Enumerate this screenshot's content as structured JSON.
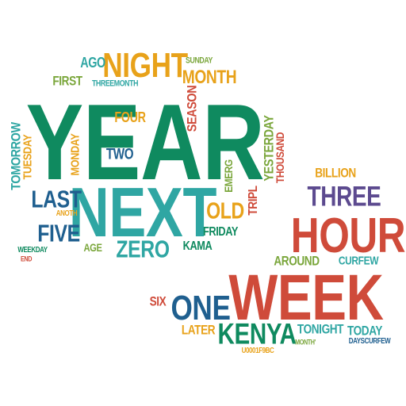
{
  "colors": {
    "green": "#0f8a5f",
    "teal": "#2fa6a3",
    "orange": "#e8a21a",
    "red": "#cf4b3a",
    "blue": "#1f5f8f",
    "purple": "#5c4a8f",
    "olive": "#7aa63b",
    "background": "#ffffff"
  },
  "words": [
    {
      "text": "YEAR",
      "color": "green"
    },
    {
      "text": "NEXT",
      "color": "teal"
    },
    {
      "text": "NIGHT",
      "color": "orange"
    },
    {
      "text": "MONTH",
      "color": "orange"
    },
    {
      "text": "AGO",
      "color": "teal"
    },
    {
      "text": "SUNDAY",
      "color": "olive"
    },
    {
      "text": "FIRST",
      "color": "olive"
    },
    {
      "text": "THREEMONTH",
      "color": "teal"
    },
    {
      "text": "SEASON",
      "color": "red"
    },
    {
      "text": "FOUR",
      "color": "orange"
    },
    {
      "text": "TWO",
      "color": "blue"
    },
    {
      "text": "TOMORROW",
      "color": "teal"
    },
    {
      "text": "TUESDAY",
      "color": "orange"
    },
    {
      "text": "MONDAY",
      "color": "orange"
    },
    {
      "text": "LAST",
      "color": "blue"
    },
    {
      "text": "ANOTH",
      "color": "orange"
    },
    {
      "text": "FIVE",
      "color": "blue"
    },
    {
      "text": "AGE",
      "color": "olive"
    },
    {
      "text": "ZERO",
      "color": "teal"
    },
    {
      "text": "WEEKDAY",
      "color": "green"
    },
    {
      "text": "END",
      "color": "red"
    },
    {
      "text": "OLD",
      "color": "orange"
    },
    {
      "text": "FRIDAY",
      "color": "green"
    },
    {
      "text": "KAMA",
      "color": "green"
    },
    {
      "text": "EMERG",
      "color": "olive"
    },
    {
      "text": "TRIPL",
      "color": "red"
    },
    {
      "text": "YESTERDAY",
      "color": "olive"
    },
    {
      "text": "THOUSAND",
      "color": "red"
    },
    {
      "text": "BILLION",
      "color": "orange"
    },
    {
      "text": "THREE",
      "color": "purple"
    },
    {
      "text": "HOUR",
      "color": "red"
    },
    {
      "text": "AROUND",
      "color": "olive"
    },
    {
      "text": "CURFEW",
      "color": "teal"
    },
    {
      "text": "WEEK",
      "color": "red"
    },
    {
      "text": "SIX",
      "color": "red"
    },
    {
      "text": "ONE",
      "color": "blue"
    },
    {
      "text": "LATER",
      "color": "orange"
    },
    {
      "text": "KENYA",
      "color": "green"
    },
    {
      "text": "TONIGHT",
      "color": "teal"
    },
    {
      "text": "TODAY",
      "color": "teal"
    },
    {
      "text": "MONTH'",
      "color": "olive"
    },
    {
      "text": "DAYSCURFEW",
      "color": "blue"
    },
    {
      "text": "U0001F9BC",
      "color": "orange"
    }
  ]
}
